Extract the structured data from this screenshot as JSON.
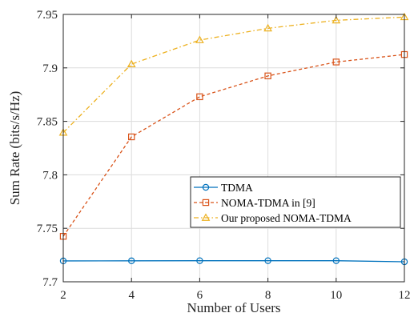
{
  "chart_data": {
    "type": "line",
    "xlabel": "Number of Users",
    "ylabel": "Sum Rate (bits/s/Hz)",
    "xlim": [
      2,
      12
    ],
    "ylim": [
      7.7,
      7.95
    ],
    "xticks": [
      2,
      4,
      6,
      8,
      10,
      12
    ],
    "xtick_labels": [
      "2",
      "4",
      "6",
      "8",
      "10",
      "12"
    ],
    "yticks": [
      7.7,
      7.75,
      7.8,
      7.85,
      7.9,
      7.95
    ],
    "ytick_labels": [
      "7.7",
      "7.75",
      "7.8",
      "7.85",
      "7.9",
      "7.95"
    ],
    "grid": true,
    "legend_position": "lower-right",
    "x": [
      2,
      4,
      6,
      8,
      10,
      12
    ],
    "series": [
      {
        "name": "TDMA",
        "values": [
          7.7195,
          7.7196,
          7.7197,
          7.7197,
          7.7197,
          7.7187
        ],
        "color": "#0072BD",
        "line_style": "solid",
        "marker": "circle"
      },
      {
        "name": "NOMA-TDMA in [9]",
        "values": [
          7.7425,
          7.8355,
          7.873,
          7.8925,
          7.9055,
          7.9125
        ],
        "color": "#D95319",
        "line_style": "dashed",
        "marker": "square"
      },
      {
        "name": "Our proposed NOMA-TDMA",
        "values": [
          7.8395,
          7.9035,
          7.926,
          7.937,
          7.9445,
          7.9475
        ],
        "color": "#EDB120",
        "line_style": "dash-dot",
        "marker": "triangle"
      }
    ]
  }
}
